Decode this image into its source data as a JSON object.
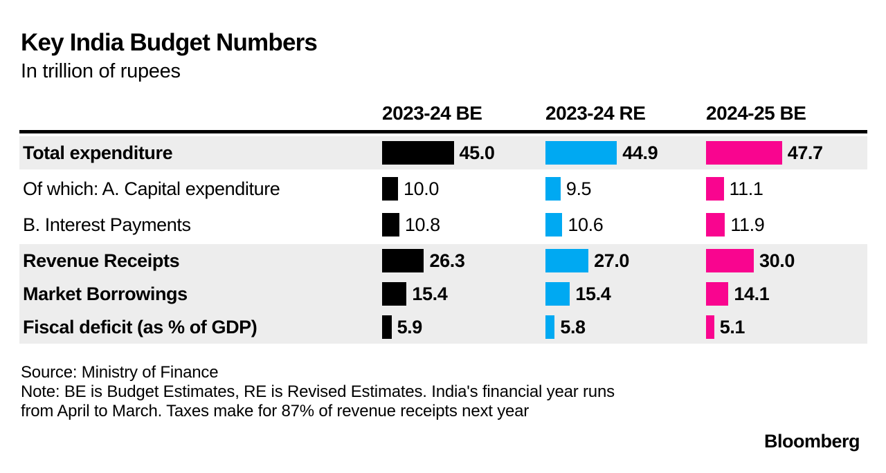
{
  "header": {
    "title": "Key India Budget Numbers",
    "subtitle": "In trillion of rupees"
  },
  "chart_data": {
    "type": "bar",
    "unit": "trillion rupees",
    "legend_position": "column headers",
    "columns": [
      {
        "label": "2023-24 BE",
        "color": "#000000"
      },
      {
        "label": "2023-24 RE",
        "color": "#00A9F2"
      },
      {
        "label": "2024-25 BE",
        "color": "#F9058F"
      }
    ],
    "rows": [
      {
        "label": "Total expenditure",
        "emphasis": true,
        "shaded": true,
        "values": [
          45.0,
          44.9,
          47.7
        ]
      },
      {
        "label": "Of which: A. Capital expenditure",
        "emphasis": false,
        "shaded": false,
        "values": [
          10.0,
          9.5,
          11.1
        ]
      },
      {
        "label": "B. Interest Payments",
        "emphasis": false,
        "shaded": false,
        "values": [
          10.8,
          10.6,
          11.9
        ]
      },
      {
        "label": "Revenue Receipts",
        "emphasis": true,
        "shaded": true,
        "values": [
          26.3,
          27.0,
          30.0
        ]
      },
      {
        "label": "Market Borrowings",
        "emphasis": true,
        "shaded": true,
        "values": [
          15.4,
          15.4,
          14.1
        ]
      },
      {
        "label": "Fiscal deficit (as % of GDP)",
        "emphasis": true,
        "shaded": true,
        "values": [
          5.9,
          5.8,
          5.1
        ]
      }
    ],
    "shaded_row_color": "#EDEDED"
  },
  "footer": {
    "source": "Source: Ministry of Finance",
    "note_lines": [
      "Note: BE is Budget Estimates, RE is Revised Estimates. India's financial year runs",
      "from April to March. Taxes make for 87% of revenue receipts next year"
    ],
    "brand": "Bloomberg"
  }
}
